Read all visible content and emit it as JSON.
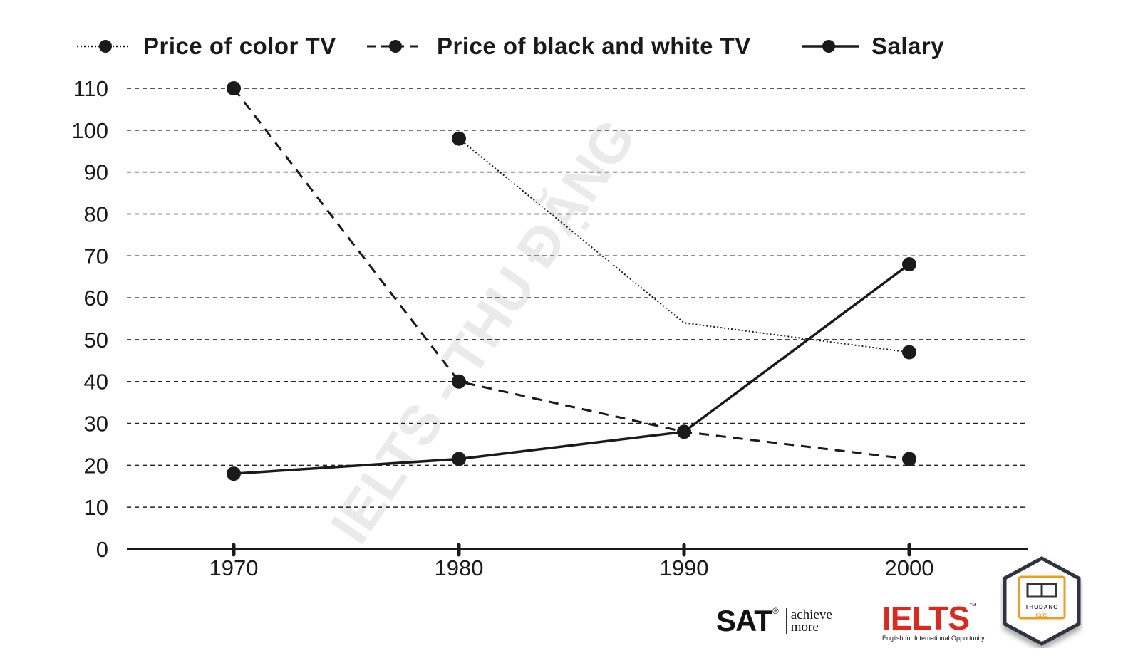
{
  "chart_data": {
    "type": "line",
    "title": "",
    "xlabel": "",
    "ylabel": "",
    "categories": [
      "1970",
      "1980",
      "1990",
      "2000"
    ],
    "y_ticks": [
      "0",
      "10",
      "20",
      "30",
      "40",
      "50",
      "60",
      "70",
      "80",
      "90",
      "100",
      "110"
    ],
    "ylim": [
      0,
      110
    ],
    "grid": "horizontal dashed",
    "legend_position": "top",
    "series": [
      {
        "name": "Price of color TV",
        "style": "dotted",
        "x": [
          "1980",
          "1990",
          "2000"
        ],
        "values": [
          98,
          54,
          47
        ],
        "markers": [
          true,
          false,
          true
        ]
      },
      {
        "name": "Price of black and white TV",
        "style": "dashed",
        "x": [
          "1970",
          "1980",
          "1990",
          "2000"
        ],
        "values": [
          110,
          40,
          28,
          21.5
        ],
        "markers": [
          true,
          true,
          false,
          true
        ]
      },
      {
        "name": "Salary",
        "style": "solid",
        "x": [
          "1970",
          "1980",
          "1990",
          "2000"
        ],
        "values": [
          18,
          21.5,
          28,
          68
        ],
        "markers": [
          true,
          true,
          true,
          true
        ]
      }
    ]
  },
  "watermark": "IELTS - THU ĐẶNG",
  "logos": {
    "sat_word": "SAT",
    "sat_reg": "®",
    "sat_tagline_1": "achieve",
    "sat_tagline_2": "more",
    "ielts_word": "IELTS",
    "ielts_tm": "™",
    "ielts_sub": "English for International Opportunity",
    "badge_top": "THUDANG",
    "badge_bottom": "IELTS"
  },
  "colors": {
    "ink": "#1a1a1a",
    "grid": "#222222",
    "ielts_red": "#e1261c",
    "badge_orange": "#f39a1e",
    "badge_border": "#2f3540"
  }
}
